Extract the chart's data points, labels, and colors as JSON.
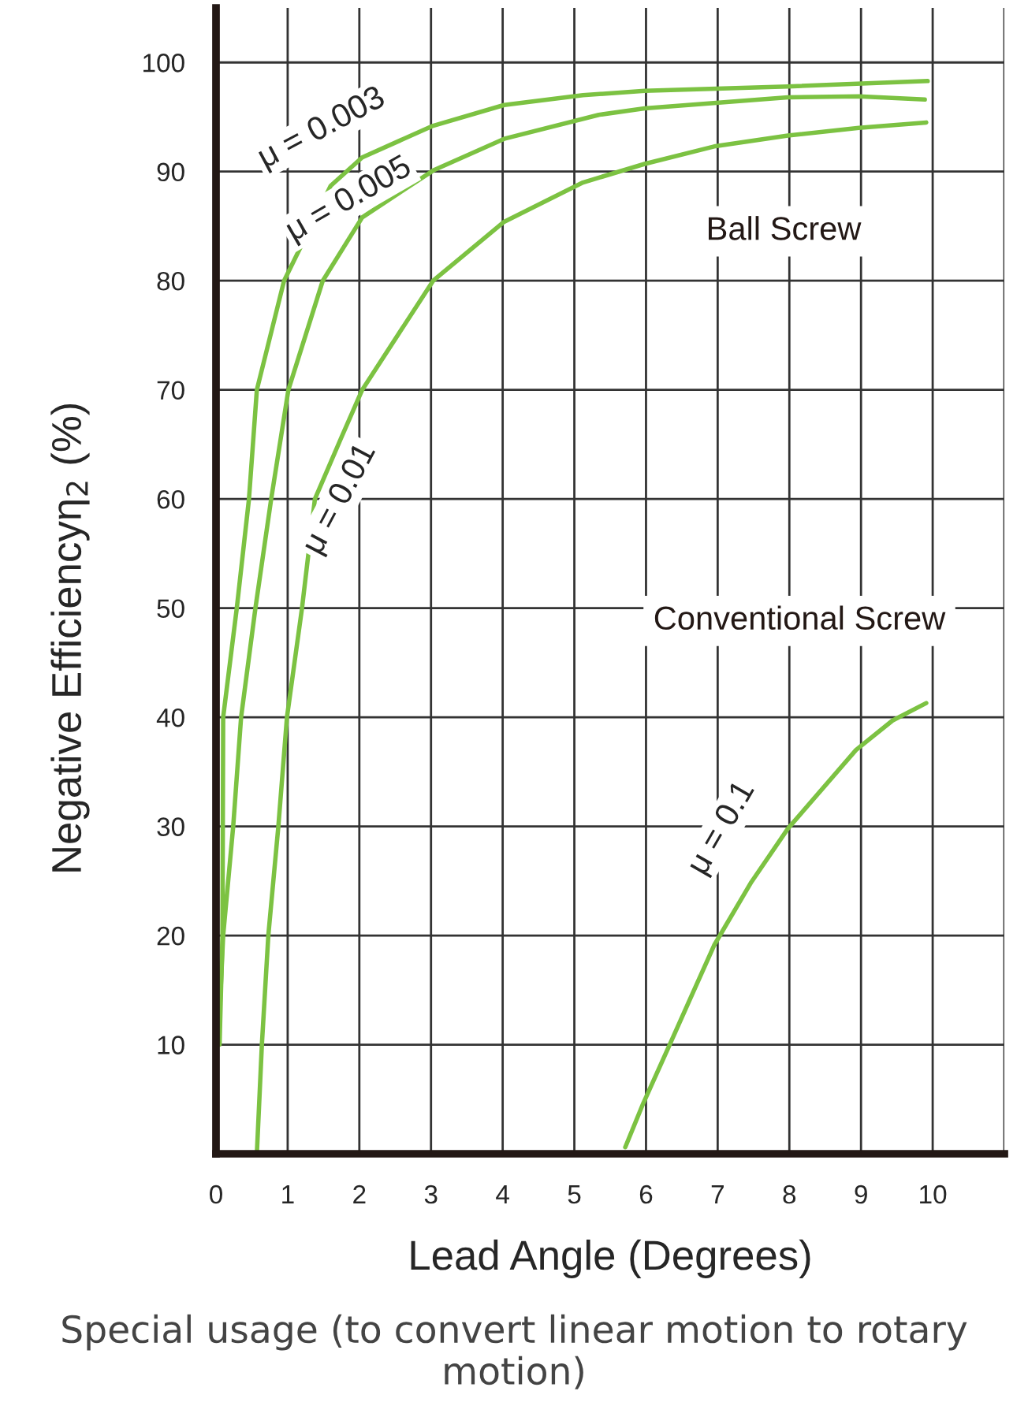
{
  "chart_data": {
    "type": "line",
    "xlabel": "Lead Angle (Degrees)",
    "ylabel": "Negative Efficiencyη$_{2}$ (%)",
    "annotations": [
      "Ball Screw",
      "Conventional Screw",
      "Special usage (to convert linear motion to rotary motion)"
    ],
    "series": [
      {
        "name": "μ = 0.003",
        "color": "#7cc242",
        "x": [
          0.05,
          0.09,
          0.1,
          0.29,
          0.46,
          0.57,
          0.95,
          1.6,
          2.04,
          3.03,
          4.02,
          5.12,
          5.98,
          7.98,
          9.93
        ],
        "values": [
          10,
          20,
          40,
          50,
          60,
          70,
          80,
          88.7,
          91.3,
          94.2,
          96.1,
          97.0,
          97.4,
          97.8,
          98.3
        ]
      },
      {
        "name": "μ = 0.005",
        "color": "#7cc242",
        "x": [
          0.03,
          0.1,
          0.24,
          0.35,
          0.55,
          0.77,
          1.01,
          1.49,
          2.04,
          3.03,
          4.02,
          5.34,
          5.98,
          7.98,
          8.97,
          9.89
        ],
        "values": [
          10,
          20,
          30,
          40,
          50,
          60,
          70,
          80,
          85.8,
          90.1,
          93.0,
          95.2,
          95.8,
          96.8,
          96.9,
          96.6
        ]
      },
      {
        "name": "μ = 0.01",
        "color": "#7cc242",
        "x": [
          0.57,
          0.64,
          0.73,
          0.87,
          0.99,
          1.2,
          1.38,
          1.74,
          2.04,
          3.03,
          4.02,
          5.12,
          5.98,
          6.95,
          7.98,
          8.97,
          9.91
        ],
        "values": [
          0,
          10,
          20,
          30,
          40,
          50,
          60,
          65.5,
          70,
          80,
          85.4,
          89.0,
          90.7,
          92.3,
          93.3,
          94.0,
          94.5
        ]
      },
      {
        "name": "μ = 0.1",
        "color": "#7cc242",
        "x": [
          5.71,
          5.96,
          6.33,
          6.95,
          7.47,
          7.98,
          8.93,
          9.44,
          9.91
        ],
        "values": [
          0.6,
          4.6,
          10.0,
          19.1,
          24.9,
          29.8,
          37.0,
          39.7,
          41.3
        ]
      }
    ],
    "xlim": [
      0,
      11
    ],
    "ylim": [
      0,
      105
    ],
    "xticks": [
      0,
      1,
      2,
      3,
      4,
      5,
      6,
      7,
      8,
      9,
      10,
      {
        "value": 11,
        "label": null
      }
    ],
    "yticks": [
      10,
      20,
      30,
      40,
      50,
      60,
      70,
      80,
      90,
      100
    ],
    "grid": true,
    "legend": false,
    "marker": "none",
    "line_style": "solid"
  }
}
